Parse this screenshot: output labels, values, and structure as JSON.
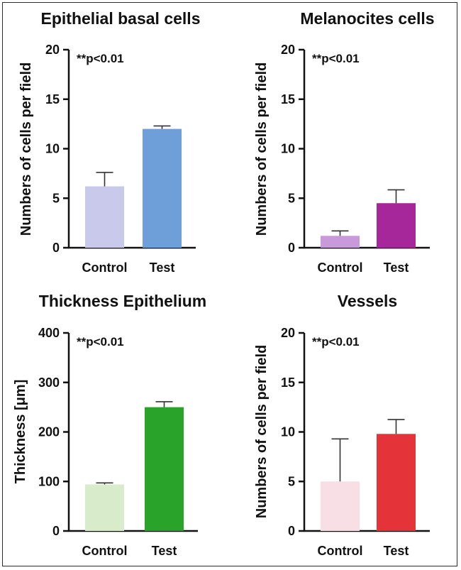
{
  "figure": {
    "frame_color": "#2b2b2b"
  },
  "chart_data": [
    {
      "type": "bar",
      "title": "Epithelial basal cells",
      "ylabel": "Numbers of cells per field",
      "xlabel": "",
      "categories": [
        "Control",
        "Test"
      ],
      "values": [
        6.2,
        12.0
      ],
      "errors": [
        1.4,
        0.3
      ],
      "colors": [
        "#c9c9ec",
        "#6f9fd8"
      ],
      "ylim": [
        0,
        20
      ],
      "yticks": [
        0,
        5,
        10,
        15,
        20
      ],
      "annotation": "**p<0.01"
    },
    {
      "type": "bar",
      "title": "Melanocites cells",
      "ylabel": "Numbers of cells per field",
      "xlabel": "",
      "categories": [
        "Control",
        "Test"
      ],
      "values": [
        1.2,
        4.5
      ],
      "errors": [
        0.5,
        1.35
      ],
      "colors": [
        "#c99ad9",
        "#a5279a"
      ],
      "ylim": [
        0,
        20
      ],
      "yticks": [
        0,
        5,
        10,
        15,
        20
      ],
      "annotation": "**p<0.01"
    },
    {
      "type": "bar",
      "title": "Thickness Epithelium",
      "ylabel": "Thickness [μm]",
      "xlabel": "",
      "categories": [
        "Control",
        "Test"
      ],
      "values": [
        94,
        250
      ],
      "errors": [
        3,
        11
      ],
      "colors": [
        "#d8ebcb",
        "#2aa32a"
      ],
      "ylim": [
        0,
        400
      ],
      "yticks": [
        0,
        100,
        200,
        300,
        400
      ],
      "annotation": "**p<0.01"
    },
    {
      "type": "bar",
      "title": "Vessels",
      "ylabel": "Numbers of cells per field",
      "xlabel": "",
      "categories": [
        "Control",
        "Test"
      ],
      "values": [
        5.0,
        9.8
      ],
      "errors": [
        4.3,
        1.45
      ],
      "colors": [
        "#f8dfe6",
        "#e5333a"
      ],
      "ylim": [
        0,
        20
      ],
      "yticks": [
        0,
        5,
        10,
        15,
        20
      ],
      "annotation": "**p<0.01"
    }
  ]
}
